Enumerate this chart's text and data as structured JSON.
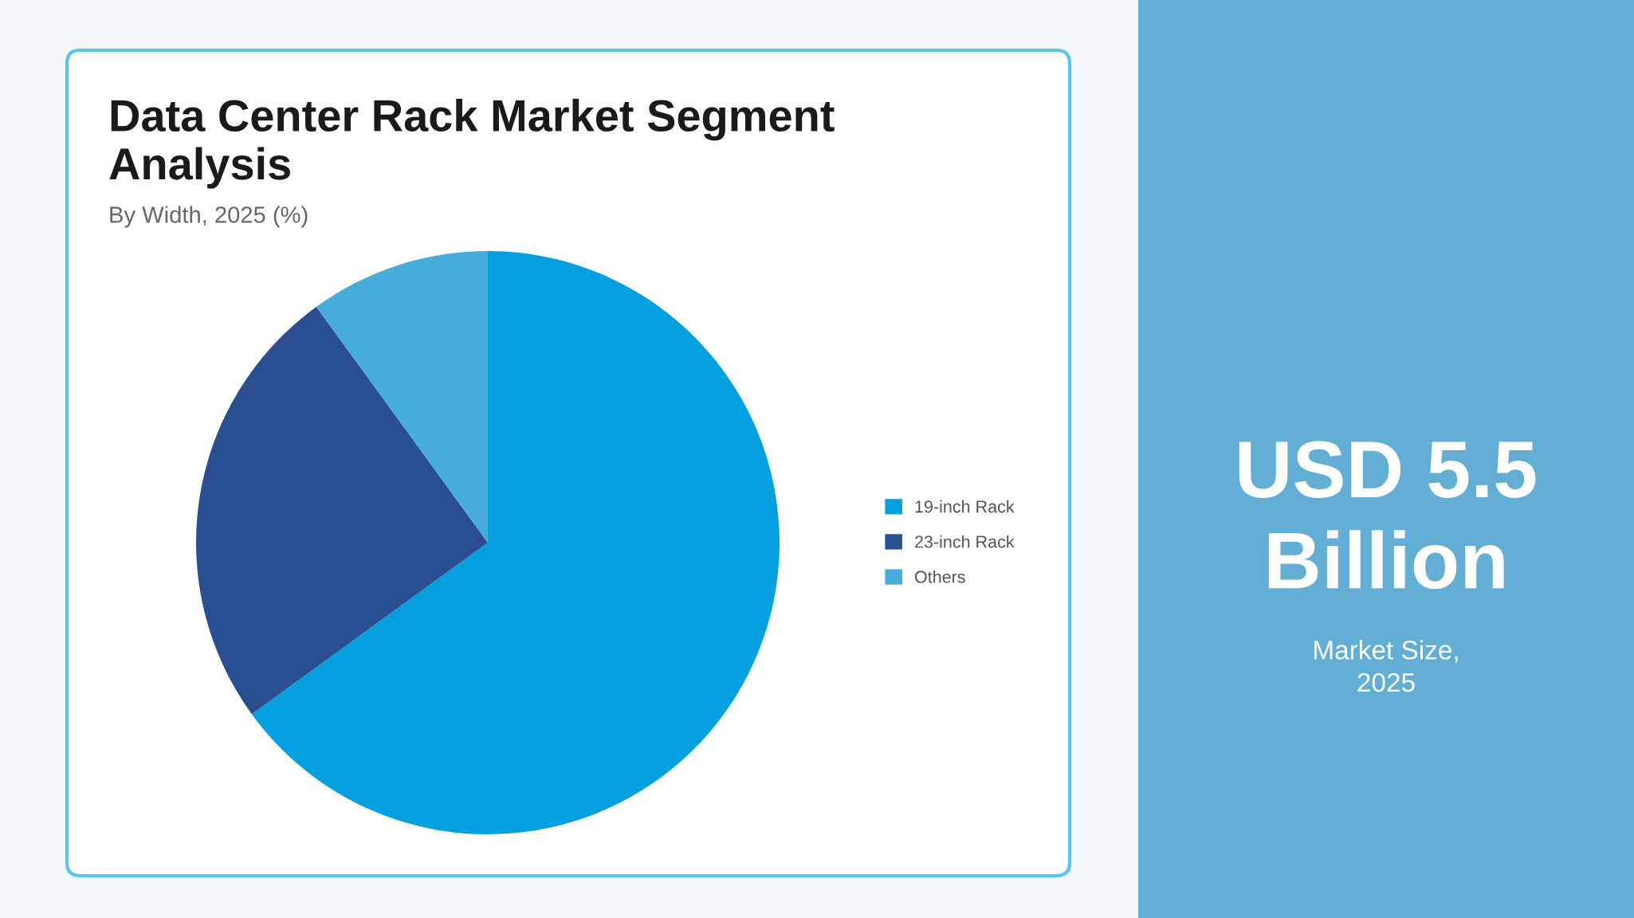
{
  "chart_data": [
    {
      "type": "pie",
      "title": "Data Center Rack Market Segment\nAnalysis",
      "subtitle": "By Width, 2025 (%)",
      "categories": [
        "19-inch Rack",
        "23-inch Rack",
        "Others"
      ],
      "values": [
        65,
        25,
        10
      ],
      "colors": [
        "#049fde",
        "#2a4f90",
        "#47acd9"
      ],
      "legend": "right"
    },
    {
      "type": "other",
      "title": "USD 5.5\nBillion",
      "subtitle": "Market Size,\n2025"
    }
  ]
}
